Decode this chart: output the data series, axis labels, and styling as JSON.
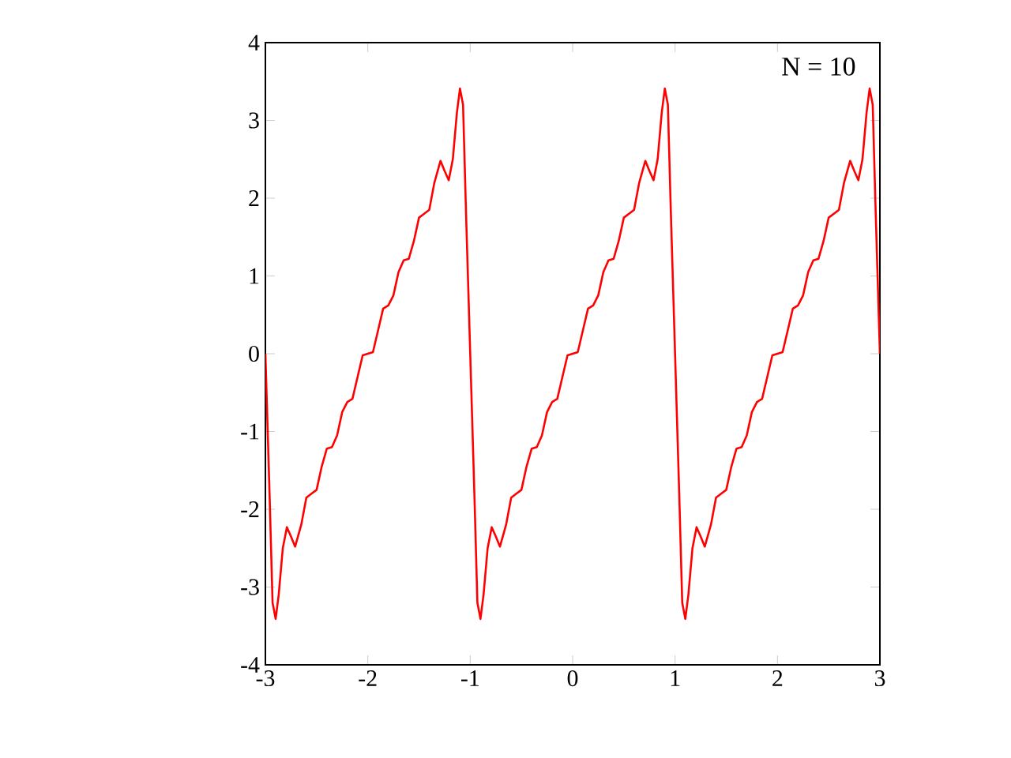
{
  "chart_data": {
    "type": "line",
    "annotations": [
      "N = 10"
    ],
    "x": [
      -3,
      -2.96,
      -2.93,
      -2.9,
      -2.87,
      -2.83,
      -2.79,
      -2.75,
      -2.71,
      -2.65,
      -2.6,
      -2.55,
      -2.5,
      -2.45,
      -2.4,
      -2.35,
      -2.3,
      -2.25,
      -2.2,
      -2.15,
      -2.1,
      -2.05,
      -2,
      -1.95,
      -1.9,
      -1.85,
      -1.8,
      -1.75,
      -1.7,
      -1.65,
      -1.6,
      -1.55,
      -1.5,
      -1.45,
      -1.4,
      -1.35,
      -1.29,
      -1.25,
      -1.21,
      -1.17,
      -1.13,
      -1.1,
      -1.07,
      -1.04,
      -1,
      -0.96,
      -0.93,
      -0.9,
      -0.87,
      -0.83,
      -0.79,
      -0.75,
      -0.71,
      -0.65,
      -0.6,
      -0.55,
      -0.5,
      -0.45,
      -0.4,
      -0.35,
      -0.3,
      -0.25,
      -0.2,
      -0.15,
      -0.1,
      -0.05,
      0,
      0.05,
      0.1,
      0.15,
      0.2,
      0.25,
      0.3,
      0.35,
      0.4,
      0.45,
      0.5,
      0.55,
      0.6,
      0.65,
      0.71,
      0.75,
      0.79,
      0.83,
      0.87,
      0.9,
      0.93,
      0.96,
      1,
      1.04,
      1.07,
      1.1,
      1.13,
      1.17,
      1.21,
      1.25,
      1.29,
      1.35,
      1.4,
      1.45,
      1.5,
      1.55,
      1.6,
      1.65,
      1.7,
      1.75,
      1.8,
      1.85,
      1.9,
      1.95,
      2,
      2.05,
      2.1,
      2.15,
      2.2,
      2.25,
      2.3,
      2.35,
      2.4,
      2.45,
      2.5,
      2.55,
      2.6,
      2.65,
      2.71,
      2.75,
      2.79,
      2.83,
      2.87,
      2.9,
      2.93,
      2.96,
      3
    ],
    "series": [
      {
        "color": "#ff0000",
        "values": [
          0,
          -1.77,
          -3.2,
          -3.41,
          -3.1,
          -2.5,
          -2.23,
          -2.35,
          -2.48,
          -2.2,
          -1.85,
          -1.8,
          -1.75,
          -1.45,
          -1.22,
          -1.2,
          -1.05,
          -0.75,
          -0.62,
          -0.58,
          -0.3,
          -0.02,
          0,
          0.02,
          0.3,
          0.58,
          0.62,
          0.75,
          1.05,
          1.2,
          1.22,
          1.45,
          1.75,
          1.8,
          1.85,
          2.2,
          2.48,
          2.35,
          2.23,
          2.5,
          3.1,
          3.41,
          3.2,
          1.77,
          0,
          -1.77,
          -3.2,
          -3.41,
          -3.1,
          -2.5,
          -2.23,
          -2.35,
          -2.48,
          -2.2,
          -1.85,
          -1.8,
          -1.75,
          -1.45,
          -1.22,
          -1.2,
          -1.05,
          -0.75,
          -0.62,
          -0.58,
          -0.3,
          -0.02,
          0,
          0.02,
          0.3,
          0.58,
          0.62,
          0.75,
          1.05,
          1.2,
          1.22,
          1.45,
          1.75,
          1.8,
          1.85,
          2.2,
          2.48,
          2.35,
          2.23,
          2.5,
          3.1,
          3.41,
          3.2,
          1.77,
          0,
          -1.77,
          -3.2,
          -3.41,
          -3.1,
          -2.5,
          -2.23,
          -2.35,
          -2.48,
          -2.2,
          -1.85,
          -1.8,
          -1.75,
          -1.45,
          -1.22,
          -1.2,
          -1.05,
          -0.75,
          -0.62,
          -0.58,
          -0.3,
          -0.02,
          0,
          0.02,
          0.3,
          0.58,
          0.62,
          0.75,
          1.05,
          1.2,
          1.22,
          1.45,
          1.75,
          1.8,
          1.85,
          2.2,
          2.48,
          2.35,
          2.23,
          2.5,
          3.1,
          3.41,
          3.2,
          1.77,
          0
        ]
      }
    ],
    "xlim": [
      -3,
      3
    ],
    "xticks": [
      -3,
      -2,
      -1,
      0,
      1,
      2,
      3
    ],
    "ylim": [
      -4,
      4
    ],
    "yticks": [
      -4,
      -3,
      -2,
      -1,
      0,
      1,
      2,
      3,
      4
    ],
    "grid": false,
    "marker": "none",
    "line_style": "solid"
  }
}
